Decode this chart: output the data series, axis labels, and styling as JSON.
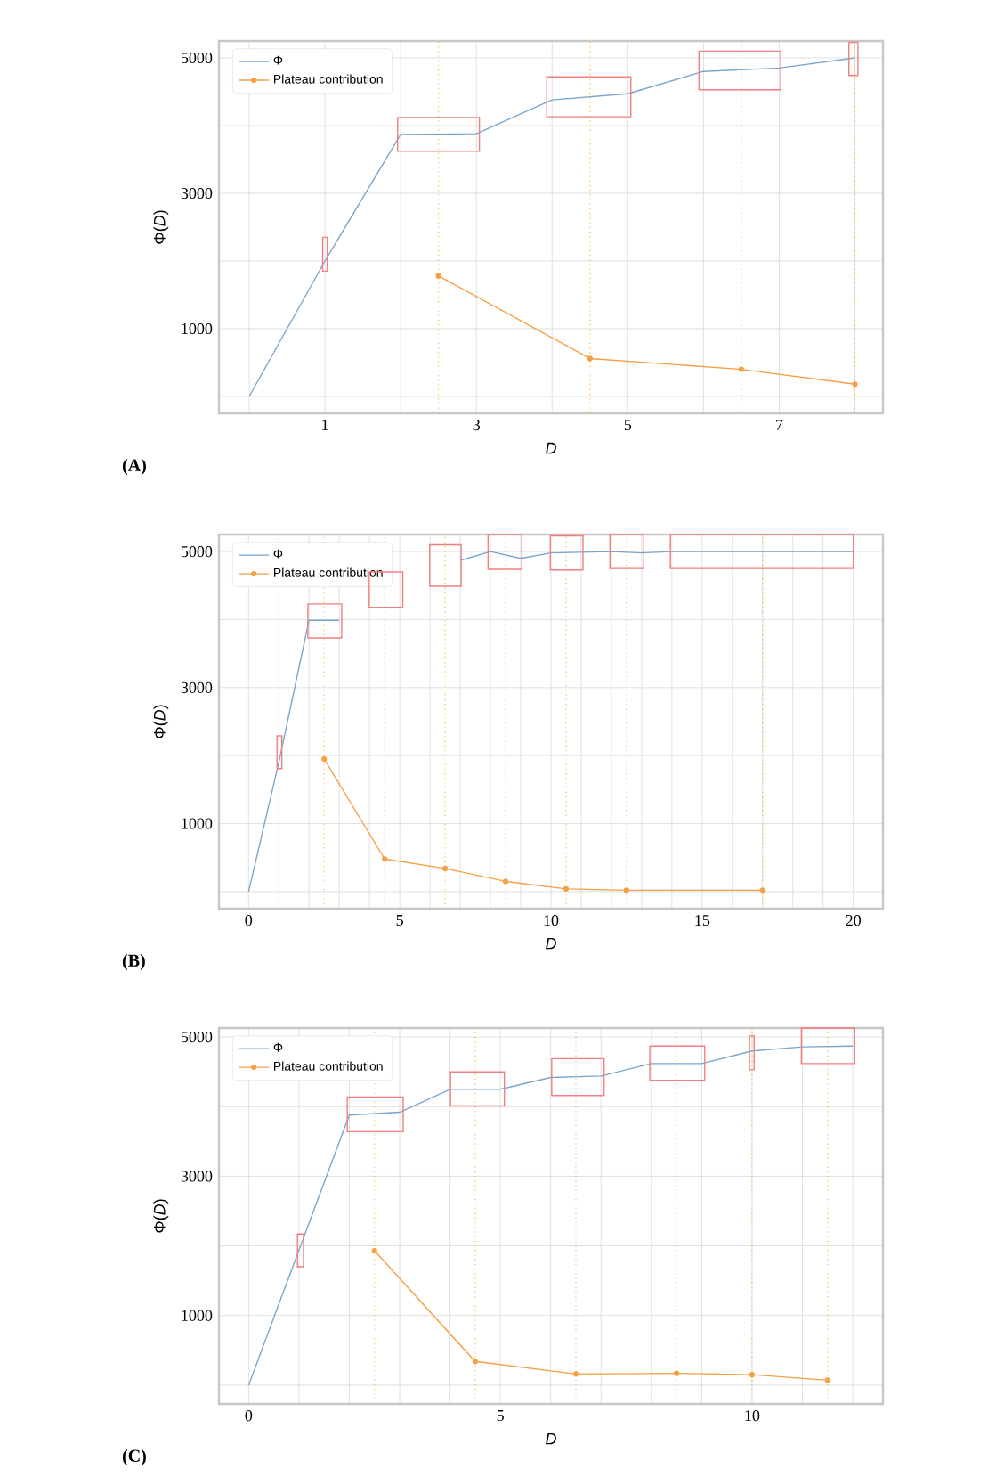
{
  "chart_data": [
    {
      "type": "line",
      "xlabel": "D",
      "ylabel": "Φ(*D*)",
      "annotations": [
        "(A)"
      ],
      "legend": "top left",
      "grid": true,
      "xlim": [
        -0.4,
        8.37
      ],
      "ylim": [
        -250,
        5250
      ],
      "xticks": [
        {
          "value": 0,
          "label": null
        },
        1,
        {
          "value": 2,
          "label": null
        },
        3,
        {
          "value": 4,
          "label": null
        },
        5,
        {
          "value": 6,
          "label": null
        },
        7,
        {
          "value": 8,
          "label": null
        }
      ],
      "yticks": [
        {
          "value": 0,
          "label": null
        },
        1000,
        {
          "value": 2000,
          "label": null
        },
        3000,
        {
          "value": 4000,
          "label": null
        },
        5000
      ],
      "ref_lines": [
        {
          "axis": "x",
          "value": 2.5,
          "color": "#ffb732",
          "line_style": "dotted"
        },
        {
          "axis": "x",
          "value": 4.5,
          "color": "#ffb732",
          "line_style": "dotted"
        },
        {
          "axis": "x",
          "value": 6.5,
          "color": "#ffb732",
          "line_style": "dotted"
        },
        {
          "axis": "x",
          "value": 8,
          "color": "#ffb732",
          "line_style": "dotted"
        }
      ],
      "series": [
        {
          "name": "Φ",
          "color": "#7aa6cc",
          "marker": "none",
          "x": [
            0,
            1,
            2,
            3,
            4,
            5,
            6,
            7,
            8
          ],
          "values": [
            0,
            2000,
            3870,
            3880,
            4380,
            4470,
            4800,
            4850,
            5000
          ]
        },
        {
          "name": "Plateau contribution",
          "color": "#f5a045",
          "marker": "circle",
          "x": [
            2.5,
            4.5,
            6.5,
            8
          ],
          "values": [
            1780,
            560,
            400,
            180
          ]
        }
      ]
    },
    {
      "type": "line",
      "xlabel": "D",
      "ylabel": "Φ(*D*)",
      "annotations": [
        "(B)"
      ],
      "legend": "top left",
      "grid": true,
      "xlim": [
        -0.98,
        20.98
      ],
      "ylim": [
        -250,
        5250
      ],
      "xticks": [
        0,
        {
          "value": 1,
          "label": null
        },
        {
          "value": 2,
          "label": null
        },
        {
          "value": 3,
          "label": null
        },
        {
          "value": 4,
          "label": null
        },
        5,
        {
          "value": 6,
          "label": null
        },
        {
          "value": 7,
          "label": null
        },
        {
          "value": 8,
          "label": null
        },
        {
          "value": 9,
          "label": null
        },
        10,
        {
          "value": 11,
          "label": null
        },
        {
          "value": 12,
          "label": null
        },
        {
          "value": 13,
          "label": null
        },
        {
          "value": 14,
          "label": null
        },
        15,
        {
          "value": 16,
          "label": null
        },
        {
          "value": 17,
          "label": null
        },
        {
          "value": 18,
          "label": null
        },
        {
          "value": 19,
          "label": null
        },
        20
      ],
      "yticks": [
        {
          "value": 0,
          "label": null
        },
        1000,
        {
          "value": 2000,
          "label": null
        },
        3000,
        {
          "value": 4000,
          "label": null
        },
        5000
      ],
      "ref_lines": [
        {
          "axis": "x",
          "value": 2.5,
          "color": "#ffb732",
          "line_style": "dotted"
        },
        {
          "axis": "x",
          "value": 4.5,
          "color": "#ffb732",
          "line_style": "dotted"
        },
        {
          "axis": "x",
          "value": 6.5,
          "color": "#ffb732",
          "line_style": "dotted"
        },
        {
          "axis": "x",
          "value": 8.5,
          "color": "#ffb732",
          "line_style": "dotted"
        },
        {
          "axis": "x",
          "value": 10.5,
          "color": "#ffb732",
          "line_style": "dotted"
        },
        {
          "axis": "x",
          "value": 12.5,
          "color": "#ffb732",
          "line_style": "dotted"
        },
        {
          "axis": "x",
          "value": 17,
          "color": "#ffb732",
          "line_style": "dotted"
        }
      ],
      "series": [
        {
          "name": "Φ",
          "color": "#7aa6cc",
          "marker": "none",
          "x": [
            0,
            1,
            2,
            3,
            4,
            5,
            6,
            7,
            8,
            9,
            10,
            11,
            12,
            13,
            14,
            15,
            16,
            17,
            18,
            19,
            20
          ],
          "values": [
            0,
            1900,
            3990,
            3990,
            null,
            null,
            null,
            4870,
            5000,
            4900,
            4980,
            4990,
            5000,
            4980,
            5000,
            5000,
            5000,
            5000,
            5000,
            5000,
            5000
          ]
        },
        {
          "name": "Plateau contribution",
          "color": "#f5a045",
          "marker": "circle",
          "x": [
            2.5,
            4.5,
            6.5,
            8.5,
            10.5,
            12.5,
            17
          ],
          "values": [
            1950,
            480,
            340,
            150,
            40,
            20,
            20
          ]
        }
      ]
    },
    {
      "type": "line",
      "xlabel": "D",
      "ylabel": "Φ(*D*)",
      "annotations": [
        "(C)"
      ],
      "legend": "top left",
      "grid": true,
      "xlim": [
        -0.59,
        12.6
      ],
      "ylim": [
        -270,
        5130
      ],
      "xticks": [
        0,
        {
          "value": 1,
          "label": null
        },
        {
          "value": 2,
          "label": null
        },
        {
          "value": 3,
          "label": null
        },
        {
          "value": 4,
          "label": null
        },
        5,
        {
          "value": 6,
          "label": null
        },
        {
          "value": 7,
          "label": null
        },
        {
          "value": 8,
          "label": null
        },
        {
          "value": 9,
          "label": null
        },
        10,
        {
          "value": 11,
          "label": null
        },
        {
          "value": 12,
          "label": null
        }
      ],
      "yticks": [
        {
          "value": 0,
          "label": null
        },
        1000,
        {
          "value": 2000,
          "label": null
        },
        3000,
        {
          "value": 4000,
          "label": null
        },
        5000
      ],
      "ref_lines": [
        {
          "axis": "x",
          "value": 2.5,
          "color": "#ffb732",
          "line_style": "dotted"
        },
        {
          "axis": "x",
          "value": 4.5,
          "color": "#ffb732",
          "line_style": "dotted"
        },
        {
          "axis": "x",
          "value": 6.5,
          "color": "#ffb732",
          "line_style": "dotted"
        },
        {
          "axis": "x",
          "value": 8.5,
          "color": "#ffb732",
          "line_style": "dotted"
        },
        {
          "axis": "x",
          "value": 10,
          "color": "#ffb732",
          "line_style": "dotted"
        },
        {
          "axis": "x",
          "value": 11.5,
          "color": "#ffb732",
          "line_style": "dotted"
        }
      ],
      "series": [
        {
          "name": "Φ",
          "color": "#7aa6cc",
          "marker": "none",
          "x": [
            0,
            1,
            2,
            3,
            4,
            5,
            6,
            7,
            8,
            9,
            10,
            11,
            12
          ],
          "values": [
            0,
            1940,
            3880,
            3920,
            4250,
            4250,
            4420,
            4440,
            4620,
            4620,
            4800,
            4860,
            4870
          ]
        },
        {
          "name": "Plateau contribution",
          "color": "#f5a045",
          "marker": "circle",
          "x": [
            2.5,
            4.5,
            6.5,
            8.5,
            10,
            11.5
          ],
          "values": [
            1930,
            340,
            160,
            170,
            150,
            70
          ]
        }
      ]
    }
  ]
}
